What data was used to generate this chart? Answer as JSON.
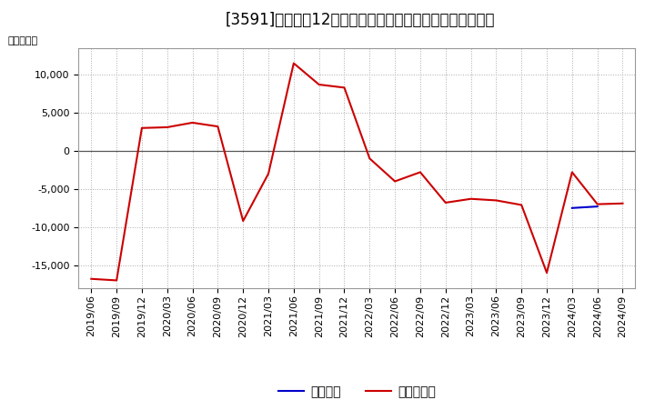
{
  "title": "[3591]　利益だ12か月移動合計の対前年同期増減額の推移",
  "ylabel": "（百万円）",
  "background_color": "#ffffff",
  "plot_bg_color": "#ffffff",
  "grid_color": "#aaaaaa",
  "ylim": [
    -18000,
    13500
  ],
  "yticks": [
    -15000,
    -10000,
    -5000,
    0,
    5000,
    10000
  ],
  "x_labels": [
    "2019/06",
    "2019/09",
    "2019/12",
    "2020/03",
    "2020/06",
    "2020/09",
    "2020/12",
    "2021/03",
    "2021/06",
    "2021/09",
    "2021/12",
    "2022/03",
    "2022/06",
    "2022/09",
    "2022/12",
    "2023/03",
    "2023/06",
    "2023/09",
    "2023/12",
    "2024/03",
    "2024/06",
    "2024/09"
  ],
  "keijo_rieki": [
    null,
    null,
    null,
    null,
    null,
    null,
    null,
    null,
    null,
    null,
    null,
    null,
    null,
    null,
    null,
    null,
    null,
    null,
    null,
    -7500,
    -7300,
    null
  ],
  "touki_jun_rieki": [
    -16800,
    -17000,
    3000,
    3100,
    3700,
    3200,
    -9200,
    -3000,
    11500,
    8700,
    8300,
    -1000,
    -4000,
    -2800,
    -6800,
    -6300,
    -6500,
    -7100,
    -16000,
    -2800,
    -7000,
    -6900
  ],
  "keijo_color": "#0000cc",
  "touki_color": "#cc0000",
  "legend_label_keijo": "経常利益",
  "legend_label_touki": "当期純利益",
  "title_fontsize": 12,
  "axis_fontsize": 8,
  "legend_fontsize": 10,
  "line_width": 1.5
}
